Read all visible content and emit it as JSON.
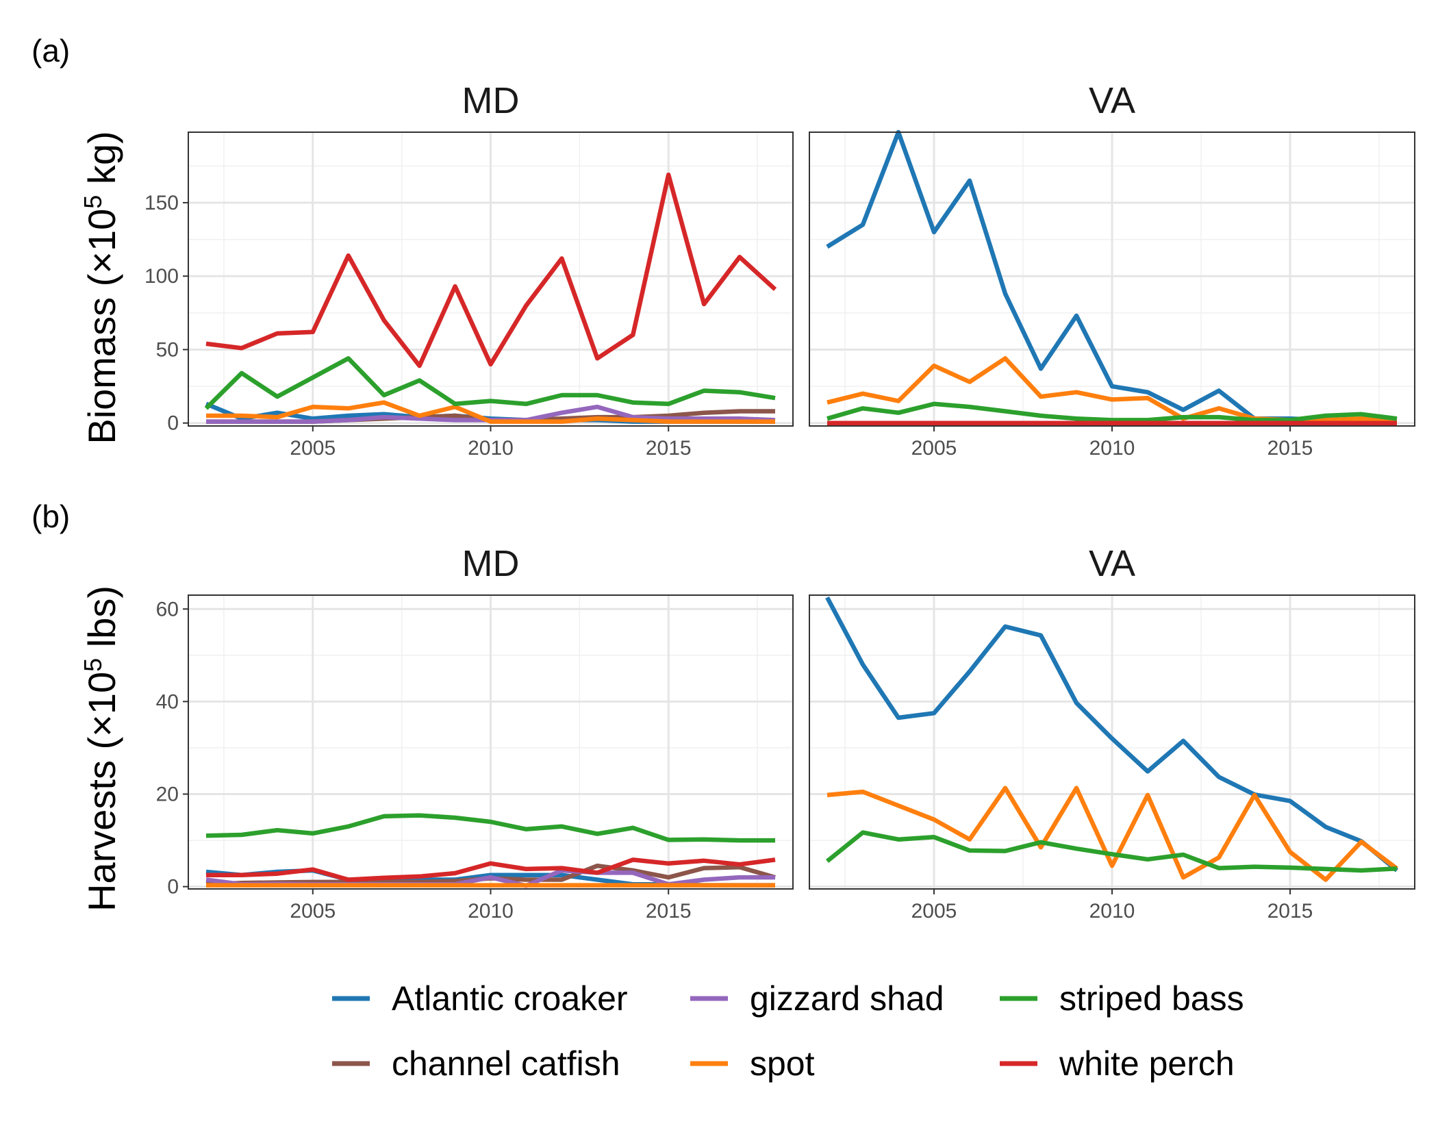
{
  "colors": {
    "Atlantic croaker": "#1f77b4",
    "channel catfish": "#8c564b",
    "gizzard shad": "#9467bd",
    "spot": "#ff7f0e",
    "striped bass": "#2ca02c",
    "white perch": "#d62728"
  },
  "panel_labels": {
    "a": "(a)",
    "b": "(b)"
  },
  "legend": {
    "entries": [
      "Atlantic croaker",
      "gizzard shad",
      "striped bass",
      "channel catfish",
      "spot",
      "white perch"
    ]
  },
  "chart_data": [
    {
      "type": "line",
      "panel": "a",
      "ylabel_main": "Biomass (×10",
      "ylabel_sup": "5",
      "ylabel_tail": " kg)",
      "ylim": [
        -2,
        198
      ],
      "yticks": [
        0,
        50,
        100,
        150
      ],
      "ytick_labels": [
        "0",
        "50",
        "100",
        "150"
      ],
      "xlim": [
        2001.5,
        2018.5
      ],
      "xticks": [
        2005,
        2010,
        2015
      ],
      "xtick_labels": [
        "2005",
        "2010",
        "2015"
      ],
      "grid": true,
      "facets": [
        {
          "title": "MD",
          "x": [
            2002,
            2003,
            2004,
            2005,
            2006,
            2007,
            2008,
            2009,
            2010,
            2011,
            2012,
            2013,
            2014,
            2015,
            2016,
            2017,
            2018
          ],
          "series": [
            {
              "name": "Atlantic croaker",
              "values": [
                13,
                3,
                7,
                3,
                5,
                6,
                4,
                5,
                3,
                2,
                2,
                2,
                1,
                1,
                1,
                1,
                1
              ]
            },
            {
              "name": "channel catfish",
              "values": [
                1,
                1,
                1,
                1,
                2,
                3,
                4,
                5,
                2,
                2,
                3,
                4,
                4,
                5,
                7,
                8,
                8
              ]
            },
            {
              "name": "gizzard shad",
              "values": [
                1,
                1,
                1,
                1,
                2,
                4,
                3,
                2,
                2,
                2,
                7,
                11,
                4,
                3,
                3,
                3,
                2
              ]
            },
            {
              "name": "spot",
              "values": [
                5,
                5,
                4,
                11,
                10,
                14,
                5,
                11,
                1,
                1,
                1,
                3,
                2,
                1,
                1,
                1,
                1
              ]
            },
            {
              "name": "striped bass",
              "values": [
                10,
                34,
                18,
                31,
                44,
                19,
                29,
                13,
                15,
                13,
                19,
                19,
                14,
                13,
                22,
                21,
                17
              ]
            },
            {
              "name": "white perch",
              "values": [
                54,
                51,
                61,
                62,
                114,
                70,
                39,
                93,
                40,
                80,
                112,
                44,
                60,
                169,
                81,
                113,
                91
              ]
            }
          ]
        },
        {
          "title": "VA",
          "x": [
            2002,
            2003,
            2004,
            2005,
            2006,
            2007,
            2008,
            2009,
            2010,
            2011,
            2012,
            2013,
            2014,
            2015,
            2016,
            2017,
            2018
          ],
          "series": [
            {
              "name": "Atlantic croaker",
              "values": [
                120,
                135,
                198,
                130,
                165,
                88,
                37,
                73,
                25,
                21,
                9,
                22,
                3,
                3,
                2,
                2,
                2
              ]
            },
            {
              "name": "channel catfish",
              "values": [
                0,
                0,
                0,
                0,
                0,
                0,
                0,
                0,
                0,
                0,
                0,
                0,
                0,
                0,
                0,
                0,
                0
              ]
            },
            {
              "name": "gizzard shad",
              "values": [
                0,
                0,
                0,
                0,
                0,
                0,
                0,
                0,
                0,
                0,
                0,
                0,
                0,
                0,
                0,
                0,
                0
              ]
            },
            {
              "name": "spot",
              "values": [
                14,
                20,
                15,
                39,
                28,
                44,
                18,
                21,
                16,
                17,
                3,
                10,
                3,
                2,
                2,
                3,
                2
              ]
            },
            {
              "name": "striped bass",
              "values": [
                3,
                10,
                7,
                13,
                11,
                8,
                5,
                3,
                2,
                2,
                4,
                4,
                2,
                2,
                5,
                6,
                3
              ]
            },
            {
              "name": "white perch",
              "values": [
                0,
                0,
                0,
                0,
                0,
                0,
                0,
                0,
                0,
                0,
                0,
                0,
                0,
                0,
                0,
                0,
                0
              ]
            }
          ]
        }
      ]
    },
    {
      "type": "line",
      "panel": "b",
      "ylabel_main": "Harvests (×10",
      "ylabel_sup": "5",
      "ylabel_tail": " lbs)",
      "ylim": [
        -0.5,
        63
      ],
      "yticks": [
        0,
        20,
        40,
        60
      ],
      "ytick_labels": [
        "0",
        "20",
        "40",
        "60"
      ],
      "xlim": [
        2001.5,
        2018.5
      ],
      "xticks": [
        2005,
        2010,
        2015
      ],
      "xtick_labels": [
        "2005",
        "2010",
        "2015"
      ],
      "grid": true,
      "facets": [
        {
          "title": "MD",
          "x": [
            2002,
            2003,
            2004,
            2005,
            2006,
            2007,
            2008,
            2009,
            2010,
            2011,
            2012,
            2013,
            2014,
            2015,
            2016,
            2017,
            2018
          ],
          "series": [
            {
              "name": "Atlantic croaker",
              "values": [
                3.2,
                2.5,
                3.2,
                3.5,
                1.5,
                1.5,
                1.5,
                1.5,
                2.5,
                2.5,
                2.5,
                1.5,
                0.5,
                0.5,
                0.3,
                0.3,
                0.3
              ]
            },
            {
              "name": "channel catfish",
              "values": [
                0.5,
                0.8,
                0.9,
                1,
                1,
                1,
                1,
                1.2,
                1.8,
                1.5,
                1.5,
                4.5,
                3.5,
                2,
                4,
                4.2,
                2
              ]
            },
            {
              "name": "gizzard shad",
              "values": [
                1.5,
                0.5,
                0.6,
                0.5,
                0.5,
                0.5,
                0.5,
                0.5,
                2,
                0.2,
                3.5,
                3,
                3,
                0.5,
                1.5,
                2,
                2
              ]
            },
            {
              "name": "spot",
              "values": [
                0.3,
                0.3,
                0.3,
                0.3,
                0.3,
                0.3,
                0.3,
                0.3,
                0.3,
                0.3,
                0.3,
                0.3,
                0.3,
                0.3,
                0.3,
                0.3,
                0.3
              ]
            },
            {
              "name": "striped bass",
              "values": [
                11,
                11.2,
                12.2,
                11.5,
                13,
                15.2,
                15.4,
                14.9,
                14,
                12.4,
                13,
                11.4,
                12.7,
                10.1,
                10.2,
                10,
                10
              ]
            },
            {
              "name": "white perch",
              "values": [
                2.5,
                2.5,
                2.8,
                3.7,
                1.5,
                1.9,
                2.2,
                2.9,
                5,
                3.8,
                4,
                3,
                5.8,
                5,
                5.6,
                4.8,
                5.8
              ]
            }
          ]
        },
        {
          "title": "VA",
          "x": [
            2002,
            2003,
            2004,
            2005,
            2006,
            2007,
            2008,
            2009,
            2010,
            2011,
            2012,
            2013,
            2014,
            2015,
            2016,
            2017,
            2018
          ],
          "series": [
            {
              "name": "Atlantic croaker",
              "values": [
                62.5,
                48,
                36.5,
                37.5,
                46.5,
                56.2,
                54.3,
                39.7,
                32,
                24.9,
                31.5,
                23.7,
                19.9,
                18.5,
                12.9,
                9.8,
                3.5
              ]
            },
            {
              "name": "spot",
              "values": [
                19.8,
                20.5,
                17.5,
                14.5,
                10.2,
                21.3,
                8.5,
                21.3,
                4.5,
                19.8,
                2,
                6.3,
                19.8,
                7.5,
                1.5,
                9.7,
                3.9
              ]
            },
            {
              "name": "striped bass",
              "values": [
                5.5,
                11.7,
                10.2,
                10.7,
                7.8,
                7.7,
                9.6,
                8.2,
                7,
                5.9,
                6.9,
                4,
                4.3,
                4.1,
                3.8,
                3.5,
                3.9
              ]
            }
          ]
        }
      ]
    }
  ]
}
